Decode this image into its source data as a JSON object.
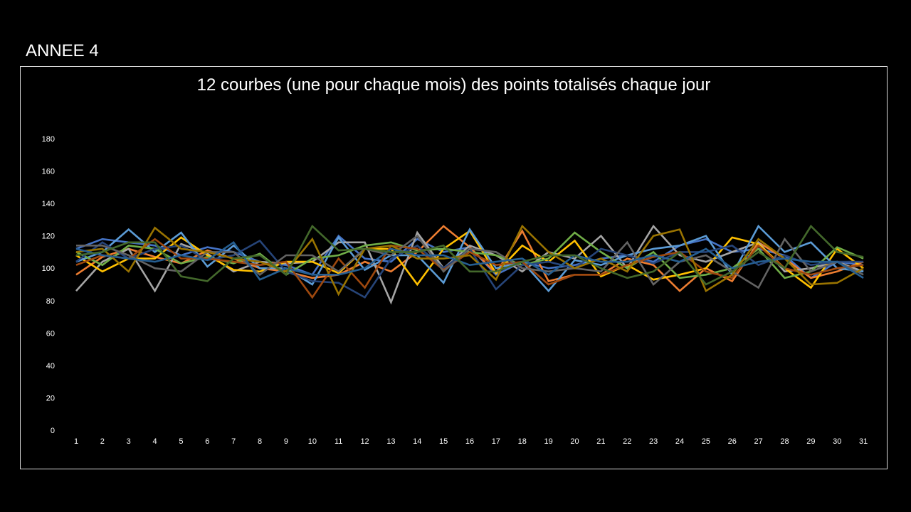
{
  "slide": {
    "title": "ANNEE 4"
  },
  "chart_data": {
    "type": "line",
    "title": "12 courbes (une pour chaque mois) des points totalisés chaque jour",
    "xlabel": "",
    "ylabel": "",
    "x": [
      1,
      2,
      3,
      4,
      5,
      6,
      7,
      8,
      9,
      10,
      11,
      12,
      13,
      14,
      15,
      16,
      17,
      18,
      19,
      20,
      21,
      22,
      23,
      24,
      25,
      26,
      27,
      28,
      29,
      30,
      31
    ],
    "ylim": [
      0,
      180
    ],
    "yticks": [
      0,
      20,
      40,
      60,
      80,
      100,
      120,
      140,
      160,
      180
    ],
    "grid": false,
    "legend": "none",
    "series": [
      {
        "color": "#4472c4",
        "values": [
          112,
          118,
          116,
          114,
          108,
          113,
          110,
          104,
          102,
          96,
          120,
          106,
          104,
          118,
          110,
          113,
          96,
          104,
          100,
          102,
          106,
          108,
          104,
          114,
          118,
          110,
          112,
          108,
          94,
          104,
          102
        ]
      },
      {
        "color": "#ed7d31",
        "values": [
          96,
          107,
          112,
          107,
          103,
          111,
          106,
          100,
          98,
          94,
          96,
          104,
          98,
          110,
          126,
          113,
          97,
          123,
          92,
          96,
          96,
          106,
          102,
          86,
          100,
          92,
          116,
          106,
          94,
          98,
          104
        ]
      },
      {
        "color": "#a5a5a5",
        "values": [
          86,
          104,
          112,
          86,
          115,
          109,
          98,
          104,
          103,
          104,
          116,
          116,
          79,
          122,
          100,
          114,
          108,
          98,
          110,
          106,
          120,
          100,
          126,
          108,
          104,
          110,
          116,
          98,
          100,
          104,
          98
        ]
      },
      {
        "color": "#ffc000",
        "values": [
          108,
          98,
          106,
          106,
          119,
          108,
          99,
          98,
          104,
          104,
          97,
          112,
          112,
          90,
          112,
          123,
          97,
          114,
          104,
          117,
          95,
          102,
          93,
          96,
          100,
          119,
          115,
          100,
          88,
          112,
          100
        ]
      },
      {
        "color": "#5b9bd5",
        "values": [
          104,
          110,
          124,
          110,
          122,
          101,
          114,
          100,
          100,
          90,
          119,
          99,
          108,
          108,
          91,
          124,
          100,
          104,
          86,
          105,
          102,
          108,
          112,
          114,
          120,
          96,
          126,
          110,
          116,
          100,
          98
        ]
      },
      {
        "color": "#70ad47",
        "values": [
          110,
          102,
          114,
          112,
          103,
          107,
          103,
          109,
          96,
          106,
          108,
          114,
          116,
          111,
          112,
          110,
          108,
          102,
          106,
          122,
          110,
          100,
          110,
          94,
          96,
          100,
          112,
          94,
          98,
          113,
          106
        ]
      },
      {
        "color": "#264478",
        "values": [
          104,
          116,
          106,
          112,
          114,
          105,
          108,
          117,
          98,
          92,
          91,
          82,
          106,
          114,
          100,
          112,
          87,
          102,
          104,
          100,
          112,
          108,
          103,
          110,
          110,
          114,
          102,
          108,
          102,
          104,
          104
        ]
      },
      {
        "color": "#9e480e",
        "values": [
          102,
          108,
          106,
          118,
          106,
          106,
          104,
          102,
          104,
          82,
          106,
          88,
          114,
          112,
          99,
          110,
          102,
          104,
          90,
          96,
          96,
          102,
          107,
          110,
          98,
          94,
          114,
          100,
          96,
          100,
          102
        ]
      },
      {
        "color": "#636363",
        "values": [
          114,
          114,
          108,
          100,
          98,
          110,
          110,
          96,
          108,
          108,
          98,
          112,
          108,
          120,
          98,
          112,
          110,
          100,
          98,
          100,
          98,
          116,
          90,
          104,
          108,
          98,
          88,
          118,
          98,
          104,
          96
        ]
      },
      {
        "color": "#997300",
        "values": [
          110,
          112,
          98,
          125,
          112,
          110,
          106,
          104,
          98,
          118,
          84,
          112,
          114,
          106,
          106,
          108,
          93,
          126,
          110,
          100,
          106,
          98,
          120,
          124,
          86,
          96,
          118,
          106,
          90,
          91,
          100
        ]
      },
      {
        "color": "#255e91",
        "values": [
          112,
          108,
          106,
          104,
          108,
          105,
          116,
          93,
          100,
          96,
          96,
          100,
          112,
          108,
          108,
          102,
          104,
          106,
          96,
          108,
          104,
          104,
          108,
          104,
          112,
          100,
          104,
          106,
          104,
          104,
          94
        ]
      },
      {
        "color": "#43682b",
        "values": [
          108,
          110,
          116,
          116,
          95,
          92,
          106,
          108,
          96,
          126,
          111,
          112,
          110,
          110,
          114,
          98,
          98,
          104,
          108,
          108,
          100,
          94,
          98,
          110,
          90,
          98,
          110,
          100,
          126,
          110,
          107
        ]
      }
    ]
  }
}
